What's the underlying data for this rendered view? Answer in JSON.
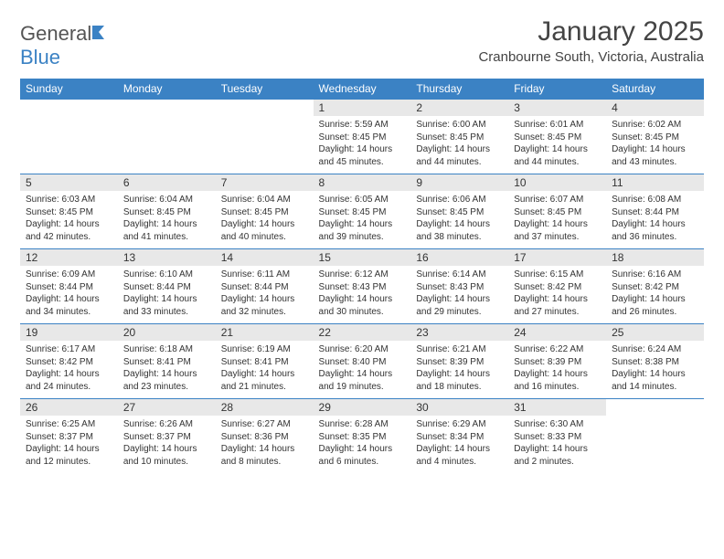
{
  "logo": {
    "text1": "General",
    "text2": "Blue"
  },
  "title": "January 2025",
  "location": "Cranbourne South, Victoria, Australia",
  "colors": {
    "header_bg": "#3b82c4",
    "daynum_bg": "#e8e8e8",
    "text": "#333333",
    "page_bg": "#ffffff"
  },
  "day_headers": [
    "Sunday",
    "Monday",
    "Tuesday",
    "Wednesday",
    "Thursday",
    "Friday",
    "Saturday"
  ],
  "weeks": [
    [
      null,
      null,
      null,
      {
        "n": "1",
        "sr": "Sunrise: 5:59 AM",
        "ss": "Sunset: 8:45 PM",
        "dl": "Daylight: 14 hours and 45 minutes."
      },
      {
        "n": "2",
        "sr": "Sunrise: 6:00 AM",
        "ss": "Sunset: 8:45 PM",
        "dl": "Daylight: 14 hours and 44 minutes."
      },
      {
        "n": "3",
        "sr": "Sunrise: 6:01 AM",
        "ss": "Sunset: 8:45 PM",
        "dl": "Daylight: 14 hours and 44 minutes."
      },
      {
        "n": "4",
        "sr": "Sunrise: 6:02 AM",
        "ss": "Sunset: 8:45 PM",
        "dl": "Daylight: 14 hours and 43 minutes."
      }
    ],
    [
      {
        "n": "5",
        "sr": "Sunrise: 6:03 AM",
        "ss": "Sunset: 8:45 PM",
        "dl": "Daylight: 14 hours and 42 minutes."
      },
      {
        "n": "6",
        "sr": "Sunrise: 6:04 AM",
        "ss": "Sunset: 8:45 PM",
        "dl": "Daylight: 14 hours and 41 minutes."
      },
      {
        "n": "7",
        "sr": "Sunrise: 6:04 AM",
        "ss": "Sunset: 8:45 PM",
        "dl": "Daylight: 14 hours and 40 minutes."
      },
      {
        "n": "8",
        "sr": "Sunrise: 6:05 AM",
        "ss": "Sunset: 8:45 PM",
        "dl": "Daylight: 14 hours and 39 minutes."
      },
      {
        "n": "9",
        "sr": "Sunrise: 6:06 AM",
        "ss": "Sunset: 8:45 PM",
        "dl": "Daylight: 14 hours and 38 minutes."
      },
      {
        "n": "10",
        "sr": "Sunrise: 6:07 AM",
        "ss": "Sunset: 8:45 PM",
        "dl": "Daylight: 14 hours and 37 minutes."
      },
      {
        "n": "11",
        "sr": "Sunrise: 6:08 AM",
        "ss": "Sunset: 8:44 PM",
        "dl": "Daylight: 14 hours and 36 minutes."
      }
    ],
    [
      {
        "n": "12",
        "sr": "Sunrise: 6:09 AM",
        "ss": "Sunset: 8:44 PM",
        "dl": "Daylight: 14 hours and 34 minutes."
      },
      {
        "n": "13",
        "sr": "Sunrise: 6:10 AM",
        "ss": "Sunset: 8:44 PM",
        "dl": "Daylight: 14 hours and 33 minutes."
      },
      {
        "n": "14",
        "sr": "Sunrise: 6:11 AM",
        "ss": "Sunset: 8:44 PM",
        "dl": "Daylight: 14 hours and 32 minutes."
      },
      {
        "n": "15",
        "sr": "Sunrise: 6:12 AM",
        "ss": "Sunset: 8:43 PM",
        "dl": "Daylight: 14 hours and 30 minutes."
      },
      {
        "n": "16",
        "sr": "Sunrise: 6:14 AM",
        "ss": "Sunset: 8:43 PM",
        "dl": "Daylight: 14 hours and 29 minutes."
      },
      {
        "n": "17",
        "sr": "Sunrise: 6:15 AM",
        "ss": "Sunset: 8:42 PM",
        "dl": "Daylight: 14 hours and 27 minutes."
      },
      {
        "n": "18",
        "sr": "Sunrise: 6:16 AM",
        "ss": "Sunset: 8:42 PM",
        "dl": "Daylight: 14 hours and 26 minutes."
      }
    ],
    [
      {
        "n": "19",
        "sr": "Sunrise: 6:17 AM",
        "ss": "Sunset: 8:42 PM",
        "dl": "Daylight: 14 hours and 24 minutes."
      },
      {
        "n": "20",
        "sr": "Sunrise: 6:18 AM",
        "ss": "Sunset: 8:41 PM",
        "dl": "Daylight: 14 hours and 23 minutes."
      },
      {
        "n": "21",
        "sr": "Sunrise: 6:19 AM",
        "ss": "Sunset: 8:41 PM",
        "dl": "Daylight: 14 hours and 21 minutes."
      },
      {
        "n": "22",
        "sr": "Sunrise: 6:20 AM",
        "ss": "Sunset: 8:40 PM",
        "dl": "Daylight: 14 hours and 19 minutes."
      },
      {
        "n": "23",
        "sr": "Sunrise: 6:21 AM",
        "ss": "Sunset: 8:39 PM",
        "dl": "Daylight: 14 hours and 18 minutes."
      },
      {
        "n": "24",
        "sr": "Sunrise: 6:22 AM",
        "ss": "Sunset: 8:39 PM",
        "dl": "Daylight: 14 hours and 16 minutes."
      },
      {
        "n": "25",
        "sr": "Sunrise: 6:24 AM",
        "ss": "Sunset: 8:38 PM",
        "dl": "Daylight: 14 hours and 14 minutes."
      }
    ],
    [
      {
        "n": "26",
        "sr": "Sunrise: 6:25 AM",
        "ss": "Sunset: 8:37 PM",
        "dl": "Daylight: 14 hours and 12 minutes."
      },
      {
        "n": "27",
        "sr": "Sunrise: 6:26 AM",
        "ss": "Sunset: 8:37 PM",
        "dl": "Daylight: 14 hours and 10 minutes."
      },
      {
        "n": "28",
        "sr": "Sunrise: 6:27 AM",
        "ss": "Sunset: 8:36 PM",
        "dl": "Daylight: 14 hours and 8 minutes."
      },
      {
        "n": "29",
        "sr": "Sunrise: 6:28 AM",
        "ss": "Sunset: 8:35 PM",
        "dl": "Daylight: 14 hours and 6 minutes."
      },
      {
        "n": "30",
        "sr": "Sunrise: 6:29 AM",
        "ss": "Sunset: 8:34 PM",
        "dl": "Daylight: 14 hours and 4 minutes."
      },
      {
        "n": "31",
        "sr": "Sunrise: 6:30 AM",
        "ss": "Sunset: 8:33 PM",
        "dl": "Daylight: 14 hours and 2 minutes."
      },
      null
    ]
  ]
}
